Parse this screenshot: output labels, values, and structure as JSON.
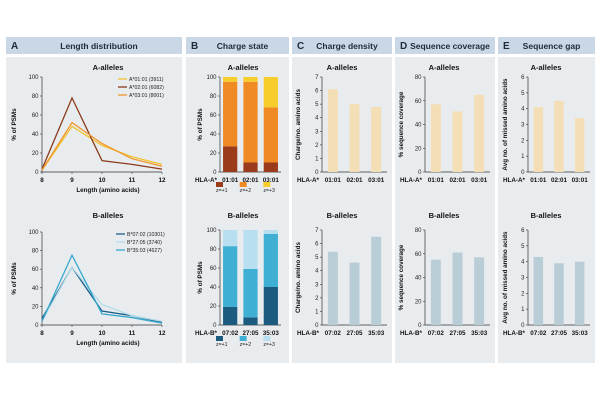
{
  "panels": [
    {
      "letter": "A",
      "title": "Length distribution"
    },
    {
      "letter": "B",
      "title": "Charge state"
    },
    {
      "letter": "C",
      "title": "Charge density"
    },
    {
      "letter": "D",
      "title": "Sequence coverage"
    },
    {
      "letter": "E",
      "title": "Sequence gap"
    }
  ],
  "colors": {
    "header_bg": "#c9d7e6",
    "panel_bg": "#e9ecef",
    "a_line1": "#f0c330",
    "a_line2": "#8b3a1a",
    "a_line3": "#f0962a",
    "b_line1": "#1e5f86",
    "b_line2": "#b5dcea",
    "b_line3": "#36a8cf",
    "a_z1": "#9a3b1c",
    "a_z2": "#f08a24",
    "a_z3": "#f6cd2a",
    "b_z1": "#1d5a80",
    "b_z2": "#3fb0d3",
    "b_z3": "#b7dff0",
    "a_bar": "#f4deb6",
    "b_bar": "#b9cdd6"
  },
  "chart_data": [
    {
      "id": "A_top",
      "type": "line",
      "title": "A-alleles",
      "x": [
        8,
        9,
        10,
        11,
        12
      ],
      "xlim": [
        8,
        12
      ],
      "ylim": [
        0,
        100
      ],
      "xticks": [
        "8",
        "9",
        "10",
        "11",
        "12"
      ],
      "yticks": [
        "0",
        "20",
        "40",
        "60",
        "80",
        "100"
      ],
      "xlabel": "Length (amino acids)",
      "ylabel": "% of PSMs",
      "series": [
        {
          "name": "A*01:01 (3911)",
          "values": [
            2,
            48,
            28,
            16,
            8
          ],
          "color": "#f0c330"
        },
        {
          "name": "A*02:01 (6082)",
          "values": [
            3,
            78,
            12,
            8,
            3
          ],
          "color": "#8b3a1a"
        },
        {
          "name": "A*03:01 (8001)",
          "values": [
            2,
            52,
            30,
            14,
            6
          ],
          "color": "#f0962a"
        }
      ]
    },
    {
      "id": "A_bottom",
      "type": "line",
      "title": "B-alleles",
      "x": [
        8,
        9,
        10,
        11,
        12
      ],
      "xlim": [
        8,
        12
      ],
      "ylim": [
        0,
        100
      ],
      "xticks": [
        "8",
        "9",
        "10",
        "11",
        "12"
      ],
      "yticks": [
        "0",
        "20",
        "40",
        "60",
        "80",
        "100"
      ],
      "xlabel": "Length (amino acids)",
      "ylabel": "% of PSMs",
      "series": [
        {
          "name": "B*07:02 (10301)",
          "values": [
            7,
            62,
            15,
            10,
            3
          ],
          "color": "#1e5f86"
        },
        {
          "name": "B*27:05 (3740)",
          "values": [
            4,
            62,
            22,
            10,
            4
          ],
          "color": "#b5dcea"
        },
        {
          "name": "B*35:03 (4627)",
          "values": [
            4,
            75,
            12,
            8,
            2
          ],
          "color": "#36a8cf"
        }
      ]
    },
    {
      "id": "B_top",
      "type": "bar",
      "stacked": true,
      "title": "A-alleles",
      "xprefix": "HLA-A*",
      "categories": [
        "01:01",
        "02:01",
        "03:01"
      ],
      "ylim": [
        0,
        100
      ],
      "yticks": [
        "0",
        "20",
        "40",
        "60",
        "80",
        "100"
      ],
      "ylabel": "% of PSMs",
      "series": [
        {
          "name": "z=+1",
          "values": [
            27,
            10,
            10
          ],
          "color": "#9a3b1c"
        },
        {
          "name": "z=+2",
          "values": [
            68,
            85,
            58
          ],
          "color": "#f08a24"
        },
        {
          "name": "z=+3",
          "values": [
            5,
            5,
            32
          ],
          "color": "#f6cd2a"
        }
      ]
    },
    {
      "id": "B_bottom",
      "type": "bar",
      "stacked": true,
      "title": "B-alleles",
      "xprefix": "HLA-B*",
      "categories": [
        "07:02",
        "27:05",
        "35:03"
      ],
      "ylim": [
        0,
        100
      ],
      "yticks": [
        "0",
        "20",
        "40",
        "60",
        "80",
        "100"
      ],
      "ylabel": "% of PSMs",
      "series": [
        {
          "name": "z=+1",
          "values": [
            19,
            8,
            40
          ],
          "color": "#1d5a80"
        },
        {
          "name": "z=+2",
          "values": [
            64,
            51,
            56
          ],
          "color": "#3fb0d3"
        },
        {
          "name": "z=+3",
          "values": [
            17,
            41,
            4
          ],
          "color": "#b7dff0"
        }
      ]
    },
    {
      "id": "C_top",
      "type": "bar",
      "title": "A-alleles",
      "xprefix": "HLA-A*",
      "categories": [
        "01:01",
        "02:01",
        "03:01"
      ],
      "values": [
        6.1,
        5.0,
        4.8
      ],
      "ylim": [
        0,
        7
      ],
      "yticks": [
        "0",
        "1",
        "2",
        "3",
        "4",
        "5",
        "6",
        "7"
      ],
      "ylabel": "Charge/no. amino acids",
      "color": "#f4deb6"
    },
    {
      "id": "C_bottom",
      "type": "bar",
      "title": "B-alleles",
      "xprefix": "HLA-B*",
      "categories": [
        "07:02",
        "27:05",
        "35:03"
      ],
      "values": [
        5.4,
        4.6,
        6.5
      ],
      "ylim": [
        0,
        7
      ],
      "yticks": [
        "0",
        "1",
        "2",
        "3",
        "4",
        "5",
        "6",
        "7"
      ],
      "ylabel": "Charge/no. amino acids",
      "color": "#b9cdd6"
    },
    {
      "id": "D_top",
      "type": "bar",
      "title": "A-alleles",
      "xprefix": "HLA-A*",
      "categories": [
        "01:01",
        "02:01",
        "03:01"
      ],
      "values": [
        57,
        51,
        65
      ],
      "ylim": [
        0,
        80
      ],
      "yticks": [
        "0",
        "20",
        "40",
        "60",
        "80"
      ],
      "ylabel": "% sequence coverage",
      "color": "#f4deb6"
    },
    {
      "id": "D_bottom",
      "type": "bar",
      "title": "B-alleles",
      "xprefix": "HLA-B*",
      "categories": [
        "07:02",
        "27:05",
        "35:03"
      ],
      "values": [
        55,
        61,
        57
      ],
      "ylim": [
        0,
        80
      ],
      "yticks": [
        "0",
        "20",
        "40",
        "60",
        "80"
      ],
      "ylabel": "% sequence coverage",
      "color": "#b9cdd6"
    },
    {
      "id": "E_top",
      "type": "bar",
      "title": "A-alleles",
      "xprefix": "HLA-A*",
      "categories": [
        "01:01",
        "02:01",
        "03:01"
      ],
      "values": [
        4.1,
        4.5,
        3.4
      ],
      "ylim": [
        0,
        6
      ],
      "yticks": [
        "0",
        "1",
        "2",
        "3",
        "4",
        "5",
        "6"
      ],
      "ylabel": "Avg no. of missed amino acids",
      "color": "#f4deb6"
    },
    {
      "id": "E_bottom",
      "type": "bar",
      "title": "B-alleles",
      "xprefix": "HLA-B*",
      "categories": [
        "07:02",
        "27:05",
        "35:03"
      ],
      "values": [
        4.3,
        3.9,
        4.0
      ],
      "ylim": [
        0,
        6
      ],
      "yticks": [
        "0",
        "1",
        "2",
        "3",
        "4",
        "5",
        "6"
      ],
      "ylabel": "Avg no. of missed amino acids",
      "color": "#b9cdd6"
    }
  ]
}
